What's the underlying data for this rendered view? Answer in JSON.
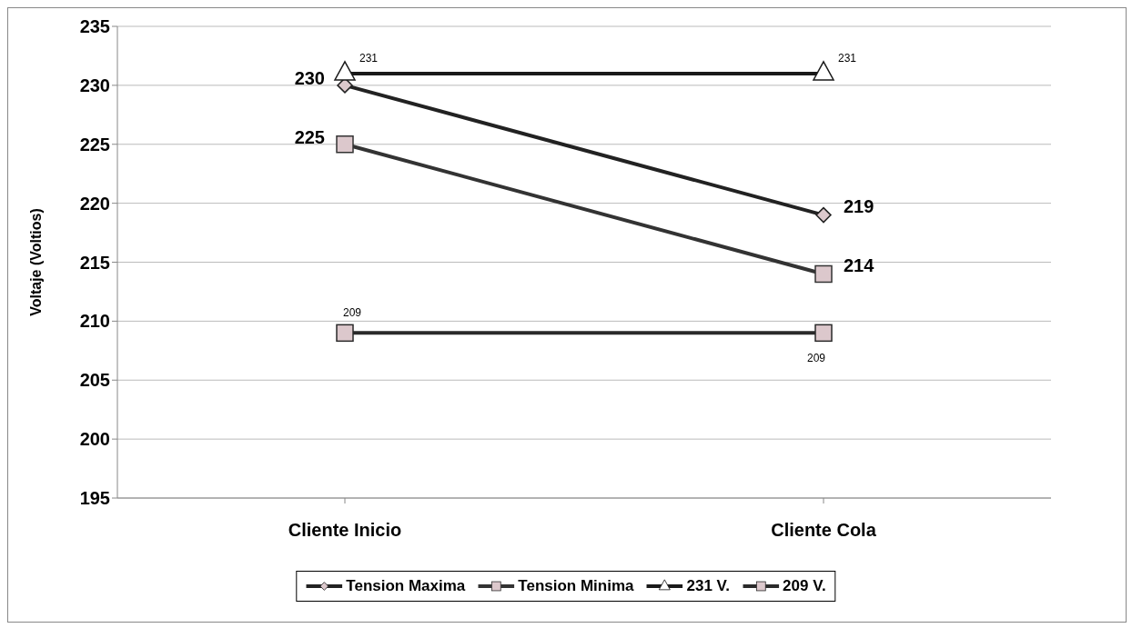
{
  "chart_data": {
    "type": "line",
    "ylabel": "Voltaje (Voltios)",
    "categories": [
      "Cliente Inicio",
      "Cliente Cola"
    ],
    "series": [
      {
        "name": "Tension Maxima",
        "color": "#222222",
        "marker": "diamond",
        "values": [
          230,
          219
        ]
      },
      {
        "name": "Tension Minima",
        "color": "#333333",
        "marker": "square",
        "values": [
          225,
          214
        ]
      },
      {
        "name": "231 V.",
        "color": "#1a1a1a",
        "marker": "triangle",
        "values": [
          231,
          231
        ]
      },
      {
        "name": "209 V.",
        "color": "#2a2a2a",
        "marker": "square",
        "values": [
          209,
          209
        ]
      }
    ],
    "ylim": [
      195,
      235
    ],
    "yticks": [
      195,
      200,
      205,
      210,
      215,
      220,
      225,
      230,
      235
    ],
    "grid": "y",
    "legend": "bottom",
    "data_labels": true,
    "line_style": "solid"
  }
}
